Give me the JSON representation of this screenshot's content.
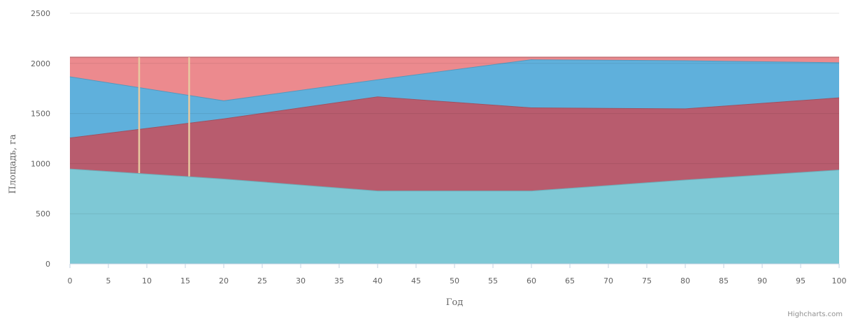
{
  "chart_data": {
    "type": "area",
    "stacked": true,
    "xlabel": "Год",
    "ylabel": "Площадь, га",
    "xlim": [
      0,
      100
    ],
    "ylim": [
      0,
      2500
    ],
    "x_ticks": [
      0,
      5,
      10,
      15,
      20,
      25,
      30,
      35,
      40,
      45,
      50,
      55,
      60,
      65,
      70,
      75,
      80,
      85,
      90,
      95,
      100
    ],
    "y_ticks": [
      0,
      500,
      1000,
      1500,
      2000,
      2500
    ],
    "grid": true,
    "x": [
      0,
      20,
      40,
      60,
      80,
      100
    ],
    "series": [
      {
        "color": "#7ec8d5",
        "values": [
          950,
          850,
          730,
          730,
          840,
          940
        ]
      },
      {
        "color": "#b85c6e",
        "values": [
          310,
          600,
          940,
          830,
          710,
          720
        ]
      },
      {
        "color": "#5fb0dc",
        "values": [
          610,
          180,
          170,
          480,
          480,
          350
        ]
      },
      {
        "color": "#ec8a8e",
        "values": [
          190,
          430,
          220,
          20,
          30,
          50
        ]
      }
    ],
    "vertical_lines": [
      {
        "x": 9,
        "color": "#e8c9a0"
      },
      {
        "x": 15.5,
        "color": "#e8c9a0"
      }
    ]
  },
  "credits": "Highcharts.com"
}
